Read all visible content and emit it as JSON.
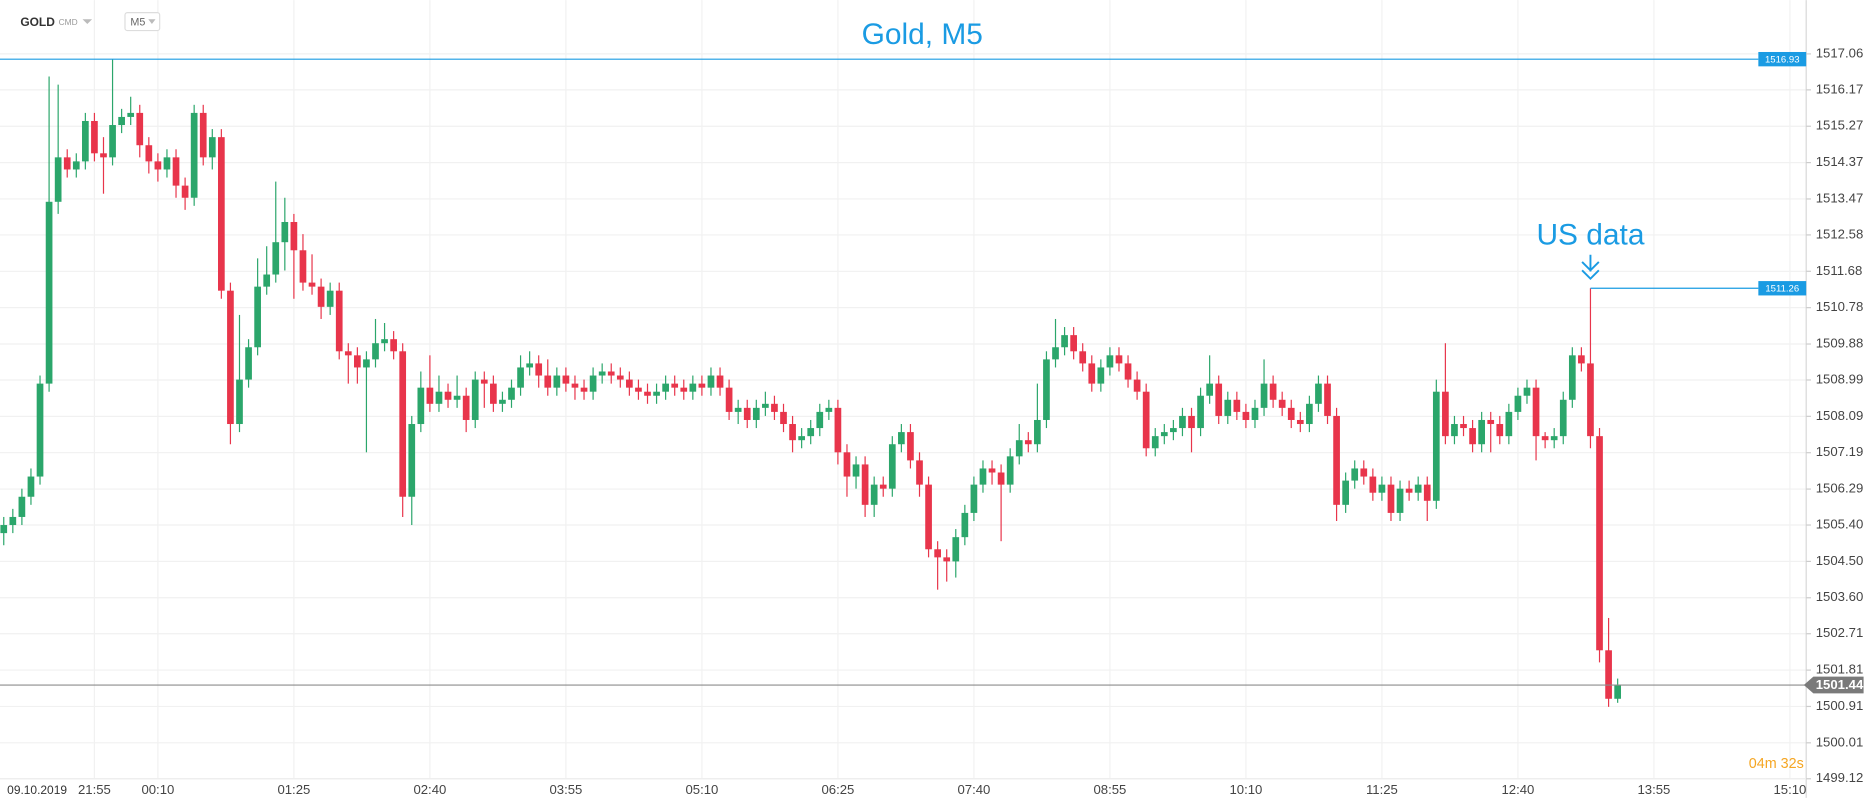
{
  "chart_data": {
    "type": "candlestick",
    "symbol": "GOLD",
    "symbol_tag": "CMD",
    "interval": "M5",
    "title": "Gold, M5",
    "date_label": "09.10.2019",
    "annotation": {
      "text": "US data",
      "index": 175,
      "value": 1511.26
    },
    "high_line": 1516.93,
    "last_price": 1501.44,
    "timer": "04m 32s",
    "up_color": "#2ba66b",
    "down_color": "#e8354b",
    "line_color": "#1a9be3",
    "grid": true,
    "ylim": [
      1499.12,
      1517.06
    ],
    "yticks": [
      1499.12,
      {
        "value": 1500.01,
        "label": "1500.01"
      },
      1500.91,
      1501.81,
      1502.71,
      {
        "value": 1503.6,
        "label": "1503.60"
      },
      {
        "value": 1504.5,
        "label": "1504.50"
      },
      {
        "value": 1505.4,
        "label": "1505.40"
      },
      1506.29,
      1507.19,
      1508.09,
      1508.99,
      1509.88,
      1510.78,
      1511.68,
      1512.58,
      1513.47,
      1514.37,
      1515.27,
      1516.17,
      1517.06
    ],
    "categories": [
      null,
      null,
      null,
      null,
      null,
      null,
      null,
      null,
      null,
      null,
      "21:55",
      null,
      null,
      null,
      null,
      null,
      null,
      "00:10",
      null,
      null,
      null,
      null,
      null,
      null,
      null,
      null,
      null,
      null,
      null,
      null,
      null,
      null,
      "01:25",
      null,
      null,
      null,
      null,
      null,
      null,
      null,
      null,
      null,
      null,
      null,
      null,
      null,
      null,
      "02:40",
      null,
      null,
      null,
      null,
      null,
      null,
      null,
      null,
      null,
      null,
      null,
      null,
      null,
      null,
      "03:55",
      null,
      null,
      null,
      null,
      null,
      null,
      null,
      null,
      null,
      null,
      null,
      null,
      null,
      null,
      "05:10",
      null,
      null,
      null,
      null,
      null,
      null,
      null,
      null,
      null,
      null,
      null,
      null,
      null,
      null,
      "06:25",
      null,
      null,
      null,
      null,
      null,
      null,
      null,
      null,
      null,
      null,
      null,
      null,
      null,
      null,
      "07:40",
      null,
      null,
      null,
      null,
      null,
      null,
      null,
      null,
      null,
      null,
      null,
      null,
      null,
      null,
      "08:55",
      null,
      null,
      null,
      null,
      null,
      null,
      null,
      null,
      null,
      null,
      null,
      null,
      null,
      null,
      "10:10",
      null,
      null,
      null,
      null,
      null,
      null,
      null,
      null,
      null,
      null,
      null,
      null,
      null,
      null,
      "11:25",
      null,
      null,
      null,
      null,
      null,
      null,
      null,
      null,
      null,
      null,
      null,
      null,
      null,
      null,
      "12:40",
      null,
      null,
      null,
      null,
      null,
      null,
      null,
      null,
      null,
      null,
      null,
      null,
      null,
      null,
      "13:55",
      null,
      null,
      null,
      null,
      null,
      null,
      null,
      null,
      null,
      null,
      null,
      null,
      null,
      null,
      "15:10"
    ],
    "open": [
      1505.2,
      1505.4,
      1505.6,
      1506.1,
      1506.6,
      1508.9,
      1513.4,
      1514.5,
      1514.2,
      1514.4,
      1515.4,
      1514.6,
      1514.5,
      1515.3,
      1515.5,
      1515.6,
      1514.8,
      1514.4,
      1514.2,
      1514.5,
      1513.8,
      1513.5,
      1515.6,
      1514.5,
      1515.0,
      1511.2,
      1507.9,
      1509.0,
      1509.8,
      1511.3,
      1511.6,
      1512.4,
      1512.9,
      1512.2,
      1511.4,
      1511.3,
      1510.8,
      1511.2,
      1509.7,
      1509.6,
      1509.3,
      1509.5,
      1509.9,
      1510.0,
      1509.7,
      1506.1,
      1507.9,
      1508.8,
      1508.4,
      1508.7,
      1508.5,
      1508.6,
      1508.0,
      1509.0,
      1508.9,
      1508.4,
      1508.5,
      1508.8,
      1509.3,
      1509.4,
      1509.1,
      1508.8,
      1509.1,
      1508.9,
      1508.8,
      1508.7,
      1509.1,
      1509.2,
      1509.1,
      1509.0,
      1508.8,
      1508.7,
      1508.6,
      1508.7,
      1508.9,
      1508.8,
      1508.7,
      1508.9,
      1508.8,
      1509.1,
      1508.8,
      1508.2,
      1508.3,
      1508.0,
      1508.3,
      1508.4,
      1508.2,
      1507.9,
      1507.5,
      1507.6,
      1507.8,
      1508.2,
      1508.3,
      1507.2,
      1506.6,
      1506.9,
      1505.9,
      1506.4,
      1506.3,
      1507.4,
      1507.7,
      1507.0,
      1506.4,
      1504.8,
      1504.6,
      1504.5,
      1505.1,
      1505.7,
      1506.4,
      1506.8,
      1506.7,
      1506.4,
      1507.1,
      1507.5,
      1507.4,
      1508.0,
      1509.5,
      1509.8,
      1510.1,
      1509.7,
      1509.4,
      1508.9,
      1509.3,
      1509.6,
      1509.4,
      1509.0,
      1508.7,
      1507.3,
      1507.6,
      1507.7,
      1507.8,
      1508.1,
      1507.8,
      1508.6,
      1508.9,
      1508.1,
      1508.5,
      1508.2,
      1508.0,
      1508.3,
      1508.9,
      1508.5,
      1508.3,
      1508.0,
      1507.9,
      1508.4,
      1508.9,
      1508.1,
      1505.9,
      1506.5,
      1506.8,
      1506.6,
      1506.2,
      1506.4,
      1505.7,
      1506.3,
      1506.2,
      1506.4,
      1506.0,
      1508.7,
      1507.6,
      1507.9,
      1507.8,
      1507.4,
      1508.0,
      1507.9,
      1507.6,
      1508.2,
      1508.6,
      1508.8,
      1507.6,
      1507.5,
      1507.6,
      1508.5,
      1509.6,
      1509.4,
      1507.6,
      1502.3,
      1501.1,
      null,
      null,
      null,
      null,
      null,
      null,
      null,
      null,
      null,
      null,
      null,
      null,
      null,
      null,
      null,
      null,
      null,
      null,
      null
    ],
    "high": [
      1505.6,
      1505.8,
      1506.3,
      1506.8,
      1509.1,
      1516.5,
      1516.3,
      1514.7,
      1514.6,
      1515.6,
      1515.6,
      1515.0,
      1516.93,
      1515.7,
      1516.0,
      1515.8,
      1515.0,
      1514.6,
      1514.7,
      1514.7,
      1514.0,
      1515.8,
      1515.8,
      1515.2,
      1515.2,
      1511.4,
      1510.6,
      1510.0,
      1512.0,
      1512.3,
      1513.9,
      1513.5,
      1513.1,
      1512.6,
      1512.1,
      1511.5,
      1511.4,
      1511.4,
      1509.9,
      1509.8,
      1509.7,
      1510.5,
      1510.4,
      1510.2,
      1509.9,
      1508.1,
      1509.2,
      1509.6,
      1509.1,
      1508.9,
      1509.1,
      1508.8,
      1509.2,
      1509.2,
      1509.1,
      1508.7,
      1509.0,
      1509.6,
      1509.7,
      1509.6,
      1509.5,
      1509.3,
      1509.3,
      1509.1,
      1509.0,
      1509.3,
      1509.4,
      1509.4,
      1509.3,
      1509.2,
      1509.0,
      1508.9,
      1508.9,
      1509.1,
      1509.1,
      1509.0,
      1509.1,
      1509.1,
      1509.3,
      1509.3,
      1509.0,
      1508.5,
      1508.5,
      1508.5,
      1508.7,
      1508.6,
      1508.4,
      1508.1,
      1507.8,
      1508.0,
      1508.4,
      1508.5,
      1508.5,
      1507.4,
      1507.1,
      1507.1,
      1506.6,
      1506.6,
      1507.6,
      1507.9,
      1507.9,
      1507.2,
      1506.6,
      1505.0,
      1504.8,
      1505.3,
      1505.9,
      1506.6,
      1507.0,
      1507.0,
      1506.9,
      1507.3,
      1507.9,
      1507.7,
      1508.9,
      1509.7,
      1510.5,
      1510.3,
      1510.3,
      1509.9,
      1509.6,
      1509.5,
      1509.8,
      1509.8,
      1509.6,
      1509.2,
      1508.9,
      1507.8,
      1507.9,
      1508.0,
      1508.3,
      1508.3,
      1508.8,
      1509.6,
      1509.1,
      1508.7,
      1508.7,
      1508.4,
      1508.5,
      1509.5,
      1509.1,
      1508.7,
      1508.5,
      1508.2,
      1508.6,
      1509.1,
      1509.1,
      1508.3,
      1506.7,
      1507.0,
      1507.0,
      1506.8,
      1506.6,
      1506.6,
      1506.5,
      1506.5,
      1506.6,
      1506.6,
      1509.0,
      1509.9,
      1508.1,
      1508.1,
      1508.0,
      1508.2,
      1508.2,
      1508.1,
      1508.4,
      1508.8,
      1509.0,
      1509.0,
      1507.7,
      1507.8,
      1508.7,
      1509.8,
      1509.8,
      1511.26,
      1507.8,
      1503.1,
      1501.6,
      null,
      null,
      null,
      null,
      null,
      null,
      null,
      null,
      null,
      null,
      null,
      null,
      null,
      null,
      null,
      null,
      null,
      null,
      null
    ],
    "low": [
      1504.9,
      1505.2,
      1505.4,
      1505.9,
      1506.4,
      1508.7,
      1513.1,
      1514.0,
      1514.0,
      1514.2,
      1514.4,
      1513.6,
      1514.3,
      1515.1,
      1515.3,
      1514.5,
      1514.1,
      1513.9,
      1514.0,
      1513.5,
      1513.2,
      1513.3,
      1514.3,
      1514.2,
      1511.0,
      1507.4,
      1507.7,
      1508.8,
      1509.6,
      1511.1,
      1511.4,
      1511.7,
      1511.0,
      1511.2,
      1511.1,
      1510.5,
      1510.6,
      1509.5,
      1508.9,
      1508.9,
      1507.2,
      1509.3,
      1509.7,
      1509.5,
      1505.6,
      1505.4,
      1507.7,
      1508.2,
      1508.2,
      1508.3,
      1508.3,
      1507.7,
      1507.8,
      1508.3,
      1508.2,
      1508.2,
      1508.3,
      1508.6,
      1509.1,
      1508.8,
      1508.6,
      1508.6,
      1508.7,
      1508.5,
      1508.5,
      1508.5,
      1508.9,
      1508.9,
      1508.8,
      1508.6,
      1508.5,
      1508.4,
      1508.4,
      1508.5,
      1508.6,
      1508.5,
      1508.5,
      1508.6,
      1508.6,
      1508.6,
      1508.0,
      1507.9,
      1507.8,
      1507.8,
      1508.1,
      1508.0,
      1507.7,
      1507.2,
      1507.3,
      1507.4,
      1507.6,
      1508.0,
      1506.9,
      1506.1,
      1506.3,
      1505.6,
      1505.6,
      1506.1,
      1506.1,
      1507.2,
      1506.8,
      1506.1,
      1504.6,
      1503.8,
      1504.0,
      1504.1,
      1504.9,
      1505.5,
      1506.2,
      1506.4,
      1505.0,
      1506.2,
      1506.9,
      1507.2,
      1507.2,
      1507.8,
      1509.3,
      1509.6,
      1509.5,
      1509.2,
      1508.7,
      1508.7,
      1509.1,
      1509.2,
      1508.8,
      1508.5,
      1507.1,
      1507.1,
      1507.4,
      1507.5,
      1507.6,
      1507.2,
      1507.6,
      1508.4,
      1507.9,
      1507.9,
      1508.0,
      1507.8,
      1507.8,
      1508.1,
      1508.3,
      1508.1,
      1507.8,
      1507.7,
      1507.7,
      1508.2,
      1507.9,
      1505.5,
      1505.7,
      1506.3,
      1506.4,
      1506.0,
      1506.0,
      1505.5,
      1505.5,
      1506.0,
      1506.0,
      1505.5,
      1505.8,
      1507.4,
      1507.4,
      1507.6,
      1507.2,
      1507.2,
      1507.2,
      1507.4,
      1507.4,
      1508.0,
      1508.4,
      1507.0,
      1507.3,
      1507.3,
      1507.4,
      1508.3,
      1509.2,
      1507.3,
      1502.0,
      1500.9,
      1501.0,
      null,
      null,
      null,
      null,
      null,
      null,
      null,
      null,
      null,
      null,
      null,
      null,
      null,
      null,
      null,
      null,
      null,
      null,
      null
    ],
    "close": [
      1505.4,
      1505.6,
      1506.1,
      1506.6,
      1508.9,
      1513.4,
      1514.5,
      1514.2,
      1514.4,
      1515.4,
      1514.6,
      1514.5,
      1515.3,
      1515.5,
      1515.6,
      1514.8,
      1514.4,
      1514.2,
      1514.5,
      1513.8,
      1513.5,
      1515.6,
      1514.5,
      1515.0,
      1511.2,
      1507.9,
      1509.0,
      1509.8,
      1511.3,
      1511.6,
      1512.4,
      1512.9,
      1512.2,
      1511.4,
      1511.3,
      1510.8,
      1511.2,
      1509.7,
      1509.6,
      1509.3,
      1509.5,
      1509.9,
      1510.0,
      1509.7,
      1506.1,
      1507.9,
      1508.8,
      1508.4,
      1508.7,
      1508.5,
      1508.6,
      1508.0,
      1509.0,
      1508.9,
      1508.4,
      1508.5,
      1508.8,
      1509.3,
      1509.4,
      1509.1,
      1508.8,
      1509.1,
      1508.9,
      1508.8,
      1508.7,
      1509.1,
      1509.2,
      1509.1,
      1509.0,
      1508.8,
      1508.7,
      1508.6,
      1508.7,
      1508.9,
      1508.8,
      1508.7,
      1508.9,
      1508.8,
      1509.1,
      1508.8,
      1508.2,
      1508.3,
      1508.0,
      1508.3,
      1508.4,
      1508.2,
      1507.9,
      1507.5,
      1507.6,
      1507.8,
      1508.2,
      1508.3,
      1507.2,
      1506.6,
      1506.9,
      1505.9,
      1506.4,
      1506.3,
      1507.4,
      1507.7,
      1507.0,
      1506.4,
      1504.8,
      1504.6,
      1504.5,
      1505.1,
      1505.7,
      1506.4,
      1506.8,
      1506.7,
      1506.4,
      1507.1,
      1507.5,
      1507.4,
      1508.0,
      1509.5,
      1509.8,
      1510.1,
      1509.7,
      1509.4,
      1508.9,
      1509.3,
      1509.6,
      1509.4,
      1509.0,
      1508.7,
      1507.3,
      1507.6,
      1507.7,
      1507.8,
      1508.1,
      1507.8,
      1508.6,
      1508.9,
      1508.1,
      1508.5,
      1508.2,
      1508.0,
      1508.3,
      1508.9,
      1508.5,
      1508.3,
      1508.0,
      1507.9,
      1508.4,
      1508.9,
      1508.1,
      1505.9,
      1506.5,
      1506.8,
      1506.6,
      1506.2,
      1506.4,
      1505.7,
      1506.3,
      1506.2,
      1506.4,
      1506.0,
      1508.7,
      1507.6,
      1507.9,
      1507.8,
      1507.4,
      1508.0,
      1507.9,
      1507.6,
      1508.2,
      1508.6,
      1508.8,
      1507.6,
      1507.5,
      1507.6,
      1508.5,
      1509.6,
      1509.4,
      1507.6,
      1502.3,
      1501.1,
      1501.44,
      null,
      null,
      null,
      null,
      null,
      null,
      null,
      null,
      null,
      null,
      null,
      null,
      null,
      null,
      null,
      null,
      null,
      null,
      null
    ]
  }
}
